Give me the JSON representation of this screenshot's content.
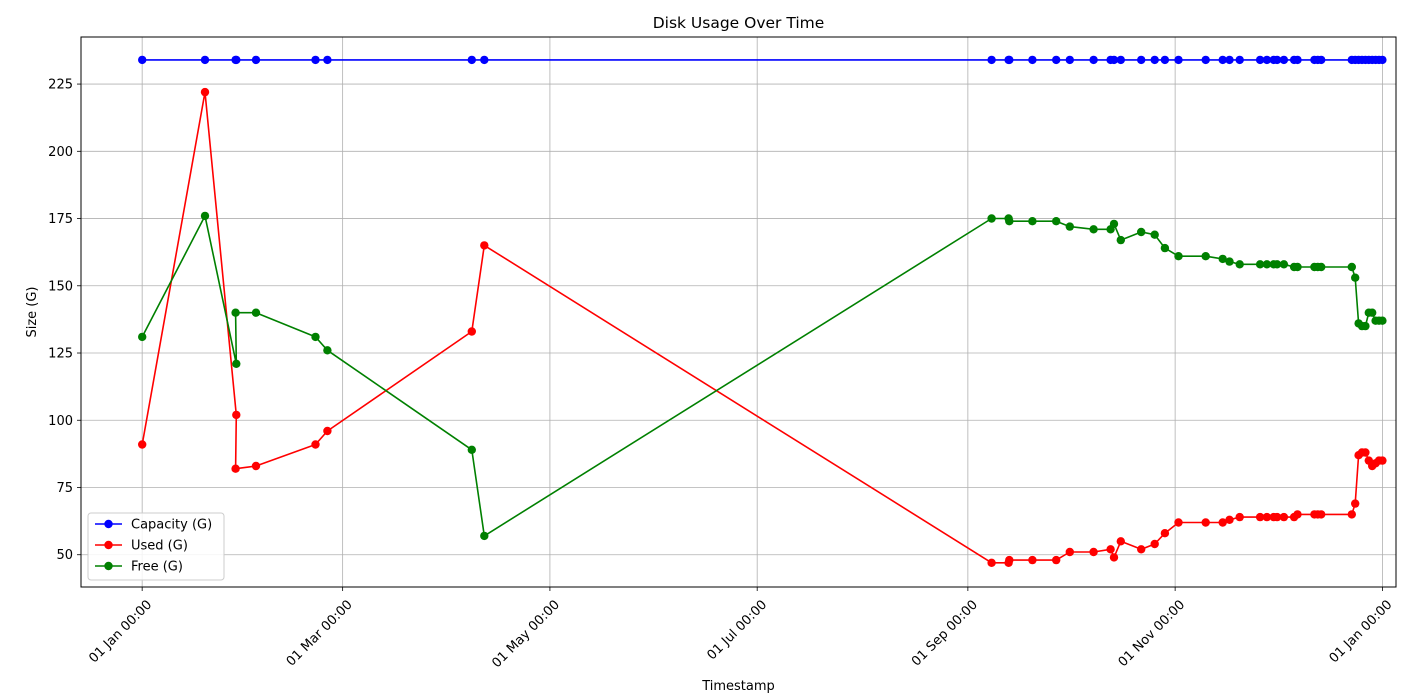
{
  "chart_data": {
    "type": "line",
    "title": "Disk Usage Over Time",
    "xlabel": "Timestamp",
    "ylabel": "Size (G)",
    "x_ticks": [
      {
        "day": 0,
        "label": "01 Jan 00:00"
      },
      {
        "day": 59,
        "label": "01 Mar 00:00"
      },
      {
        "day": 120,
        "label": "01 May 00:00"
      },
      {
        "day": 181,
        "label": "01 Jul 00:00"
      },
      {
        "day": 243,
        "label": "01 Sep 00:00"
      },
      {
        "day": 304,
        "label": "01 Nov 00:00"
      },
      {
        "day": 365,
        "label": "01 Jan 00:00"
      }
    ],
    "y_ticks": [
      50,
      75,
      100,
      125,
      150,
      175,
      200,
      225
    ],
    "xlim": [
      -18,
      369
    ],
    "ylim": [
      38,
      242.5
    ],
    "grid": true,
    "legend_position": "lower-left",
    "x": [
      0,
      18.5,
      27.5,
      27.7,
      33.5,
      51,
      54.5,
      97,
      100.7,
      250,
      255,
      255.2,
      262,
      269,
      273,
      280,
      285,
      286,
      288,
      294,
      298,
      301,
      305,
      313,
      318,
      320,
      323,
      329,
      331,
      333,
      334,
      336,
      339,
      340,
      345,
      346,
      347,
      356,
      357,
      358,
      359,
      360,
      361,
      362,
      363,
      364,
      365
    ],
    "series": [
      {
        "name": "Capacity (G)",
        "color": "#0000ff",
        "values": [
          234,
          234,
          234,
          234,
          234,
          234,
          234,
          234,
          234,
          234,
          234,
          234,
          234,
          234,
          234,
          234,
          234,
          234,
          234,
          234,
          234,
          234,
          234,
          234,
          234,
          234,
          234,
          234,
          234,
          234,
          234,
          234,
          234,
          234,
          234,
          234,
          234,
          234,
          234,
          234,
          234,
          234,
          234,
          234,
          234,
          234,
          234
        ]
      },
      {
        "name": "Used (G)",
        "color": "#ff0000",
        "values": [
          91,
          222,
          82,
          102,
          83,
          91,
          96,
          133,
          165,
          47,
          47,
          48,
          48,
          48,
          51,
          51,
          52,
          49,
          55,
          52,
          54,
          58,
          62,
          62,
          62,
          63,
          64,
          64,
          64,
          64,
          64,
          64,
          64,
          65,
          65,
          65,
          65,
          65,
          69,
          87,
          88,
          88,
          85,
          83,
          84,
          85,
          85
        ]
      },
      {
        "name": "Free (G)",
        "color": "#008000",
        "values": [
          131,
          176,
          140,
          121,
          140,
          131,
          126,
          89,
          57,
          175,
          175,
          174,
          174,
          174,
          172,
          171,
          171,
          173,
          167,
          170,
          169,
          164,
          161,
          161,
          160,
          159,
          158,
          158,
          158,
          158,
          158,
          158,
          157,
          157,
          157,
          157,
          157,
          157,
          153,
          136,
          135,
          135,
          140,
          140,
          137,
          137,
          137
        ]
      }
    ],
    "line_order": [
      0,
      1,
      3,
      2,
      4,
      5,
      6,
      7,
      8,
      9,
      10,
      11,
      12,
      13,
      14,
      15,
      16,
      17,
      18,
      19,
      20,
      21,
      22,
      23,
      24,
      25,
      26,
      27,
      28,
      29,
      30,
      31,
      32,
      33,
      34,
      35,
      36,
      37,
      38,
      39,
      40,
      41,
      42,
      43,
      44,
      45,
      46
    ]
  }
}
